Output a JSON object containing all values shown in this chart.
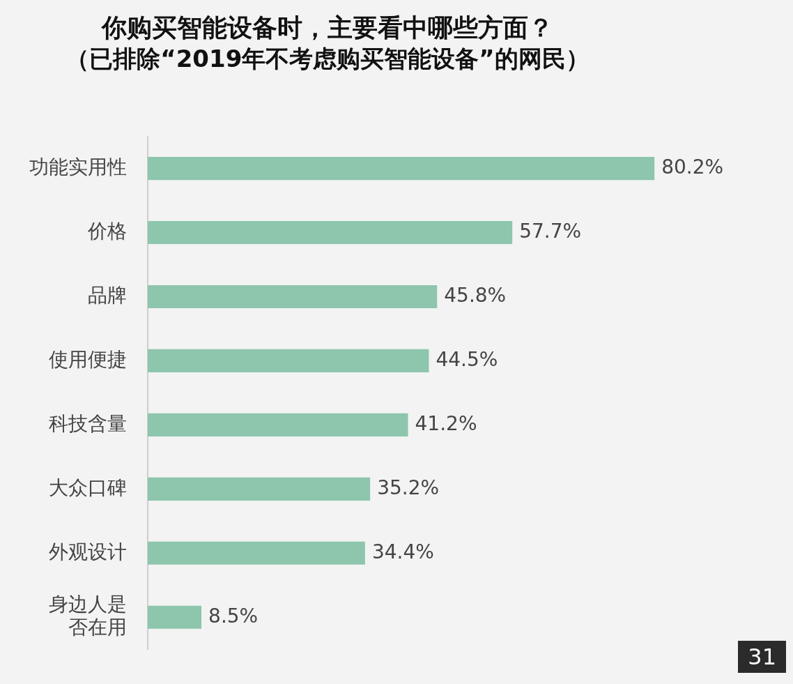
{
  "chart_data": {
    "type": "bar",
    "orientation": "horizontal",
    "title": "你购买智能设备时，主要看中哪些方面？",
    "subtitle": "（已排除“2019年不考虑购买智能设备”的网民）",
    "categories": [
      "功能实用性",
      "价格",
      "品牌",
      "使用便捷",
      "科技含量",
      "大众口碑",
      "外观设计",
      "身边人是否在用"
    ],
    "values": [
      80.2,
      57.7,
      45.8,
      44.5,
      41.2,
      35.2,
      34.4,
      8.5
    ],
    "value_labels": [
      "80.2%",
      "57.7%",
      "45.8%",
      "44.5%",
      "41.2%",
      "35.2%",
      "34.4%",
      "8.5%"
    ],
    "color": "#8dc6ad",
    "legend": false,
    "annotations": [
      "31"
    ]
  }
}
